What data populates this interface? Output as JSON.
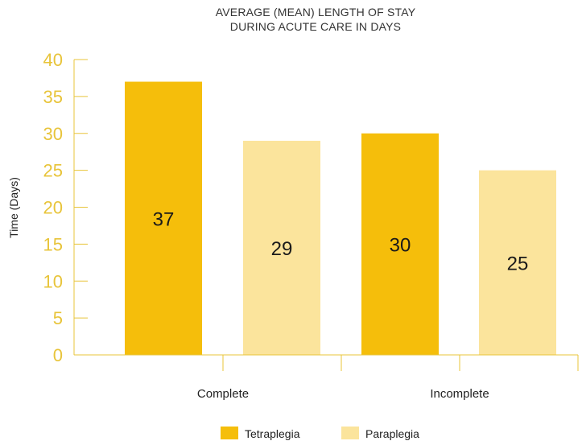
{
  "chart_data": {
    "type": "bar",
    "title_lines": [
      "AVERAGE (MEAN) LENGTH OF STAY",
      "DURING ACUTE CARE IN DAYS"
    ],
    "xlabel": "",
    "ylabel": "Time (Days)",
    "ylim": [
      0,
      40
    ],
    "yticks": [
      "0",
      "5",
      "10",
      "15",
      "20",
      "25",
      "30",
      "35",
      "40"
    ],
    "categories": [
      "Complete",
      "Incomplete"
    ],
    "series": [
      {
        "name": "Tetraplegia",
        "color": "#F5BE0B",
        "values": [
          37,
          30
        ]
      },
      {
        "name": "Paraplegia",
        "color": "#FBE49C",
        "values": [
          29,
          25
        ]
      }
    ],
    "value_labels": [
      [
        "37",
        "30"
      ],
      [
        "29",
        "25"
      ]
    ],
    "axis_color": "#E8C43A",
    "grid": false,
    "legend_position": "bottom-center"
  }
}
